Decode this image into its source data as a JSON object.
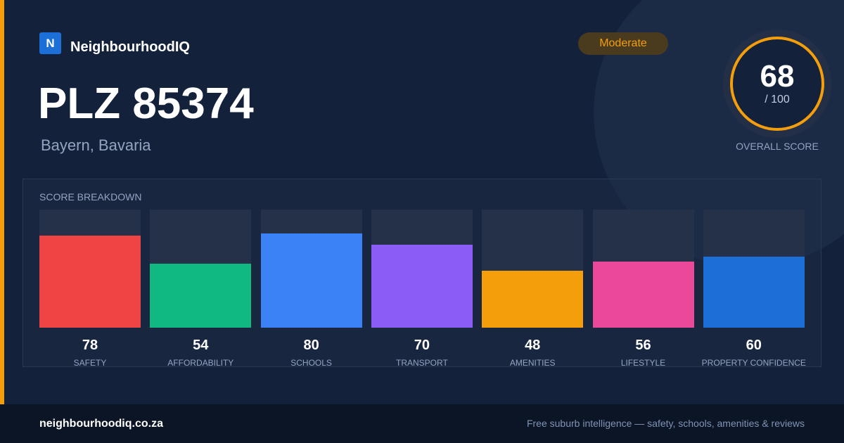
{
  "brand": {
    "logo": "N",
    "name": "NeighbourhoodIQ"
  },
  "badge": "Moderate",
  "title": "PLZ 85374",
  "subtitle": "Bayern, Bavaria",
  "score": {
    "value": "68",
    "max": "/ 100",
    "label": "OVERALL SCORE"
  },
  "chart_data": {
    "type": "bar",
    "title": "SCORE BREAKDOWN",
    "categories": [
      "SAFETY",
      "AFFORDABILITY",
      "SCHOOLS",
      "TRANSPORT",
      "AMENITIES",
      "LIFESTYLE",
      "PROPERTY CONFIDENCE"
    ],
    "values": [
      78,
      54,
      80,
      70,
      48,
      56,
      60
    ],
    "colors": [
      "#ef4444",
      "#10b981",
      "#3b82f6",
      "#8b5cf6",
      "#f59e0b",
      "#ec4899",
      "#1d6fd8"
    ],
    "ylim": [
      0,
      100
    ]
  },
  "footer": {
    "site": "neighbourhoodiq.co.za",
    "tagline": "Free suburb intelligence — safety, schools, amenities & reviews"
  }
}
